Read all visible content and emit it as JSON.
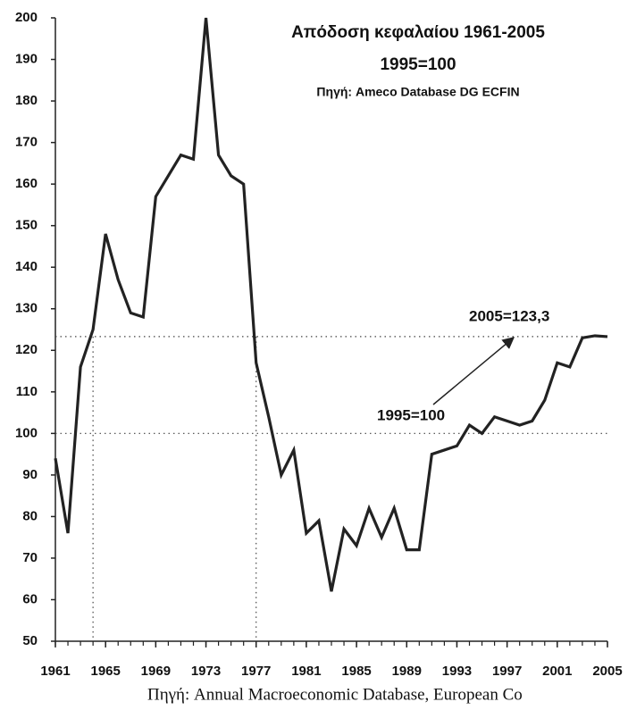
{
  "chart_data": {
    "type": "line",
    "title": "Απόδοση κεφαλαίου 1961-2005",
    "subtitle": "1995=100",
    "source": "Πηγή: Ameco Database DG ECFIN",
    "footer": "Πηγή: Annual Macroeconomic Database, European Co",
    "x": [
      1961,
      1962,
      1963,
      1964,
      1965,
      1966,
      1967,
      1968,
      1969,
      1970,
      1971,
      1972,
      1973,
      1974,
      1975,
      1976,
      1977,
      1978,
      1979,
      1980,
      1981,
      1982,
      1983,
      1984,
      1985,
      1986,
      1987,
      1988,
      1989,
      1990,
      1991,
      1992,
      1993,
      1994,
      1995,
      1996,
      1997,
      1998,
      1999,
      2000,
      2001,
      2002,
      2003,
      2004,
      2005
    ],
    "series": [
      {
        "name": "Απόδοση κεφαλαίου",
        "color": "#222222",
        "values": [
          94,
          76,
          116,
          125,
          148,
          137,
          129,
          128,
          157,
          162,
          167,
          166,
          200,
          167,
          162,
          160,
          117,
          104,
          90,
          96,
          76,
          79,
          62,
          77,
          73,
          82,
          75,
          82,
          72,
          72,
          95,
          96,
          97,
          102,
          100,
          104,
          103,
          102,
          103,
          108,
          117,
          116,
          123,
          123.5,
          123.3
        ]
      }
    ],
    "xlim": [
      1961,
      2005
    ],
    "xticks": [
      1961,
      1965,
      1969,
      1973,
      1977,
      1981,
      1985,
      1989,
      1993,
      1997,
      2001,
      2005
    ],
    "ylim": [
      50,
      200
    ],
    "yticks": [
      50,
      60,
      70,
      80,
      90,
      100,
      110,
      120,
      130,
      140,
      150,
      160,
      170,
      180,
      190,
      200
    ],
    "reference_lines": {
      "horizontal": [
        123.3,
        100
      ],
      "vertical": [
        1964,
        1977
      ]
    },
    "annotations": [
      {
        "text": "2005=123,3"
      },
      {
        "text": "1995=100"
      }
    ]
  }
}
